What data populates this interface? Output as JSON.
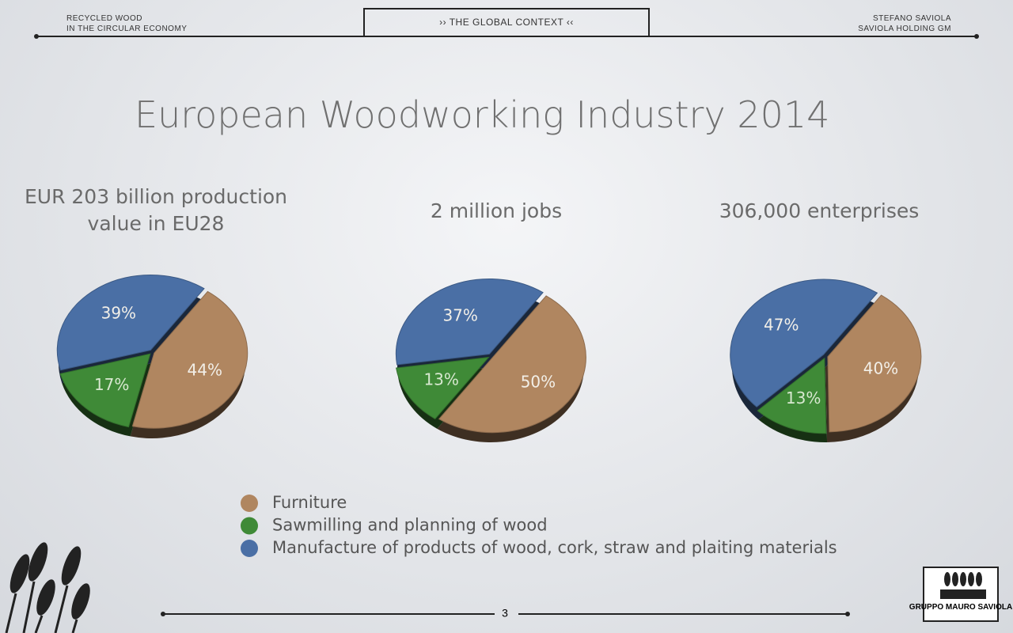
{
  "header": {
    "left": [
      "RECYCLED WOOD",
      "IN THE CIRCULAR ECONOMY"
    ],
    "center": "›› THE GLOBAL CONTEXT ‹‹",
    "right": [
      "STEFANO SAVIOLA",
      "SAVIOLA HOLDING GM"
    ]
  },
  "title": "European Woodworking Industry 2014",
  "chart_data": [
    {
      "type": "pie",
      "title": "EUR 203 billion production value in EU28",
      "categories": [
        "Furniture",
        "Sawmilling and planning of wood",
        "Manufacture of products of wood, cork, straw and plaiting materials"
      ],
      "values": [
        44,
        17,
        39
      ],
      "value_labels": [
        "44%",
        "17%",
        "39%"
      ],
      "colors": [
        "#b08660",
        "#3f8a37",
        "#4a6fa5"
      ]
    },
    {
      "type": "pie",
      "title": "2 million jobs",
      "values": [
        50,
        13,
        37
      ],
      "value_labels": [
        "50%",
        "13%",
        "37%"
      ],
      "colors": [
        "#b08660",
        "#3f8a37",
        "#4a6fa5"
      ]
    },
    {
      "type": "pie",
      "title": "306,000 enterprises",
      "values": [
        40,
        13,
        47
      ],
      "value_labels": [
        "40%",
        "13%",
        "47%"
      ],
      "colors": [
        "#b08660",
        "#3f8a37",
        "#4a6fa5"
      ]
    }
  ],
  "page_number": "3",
  "logo": "GRUPPO MAURO SAVIOLA"
}
